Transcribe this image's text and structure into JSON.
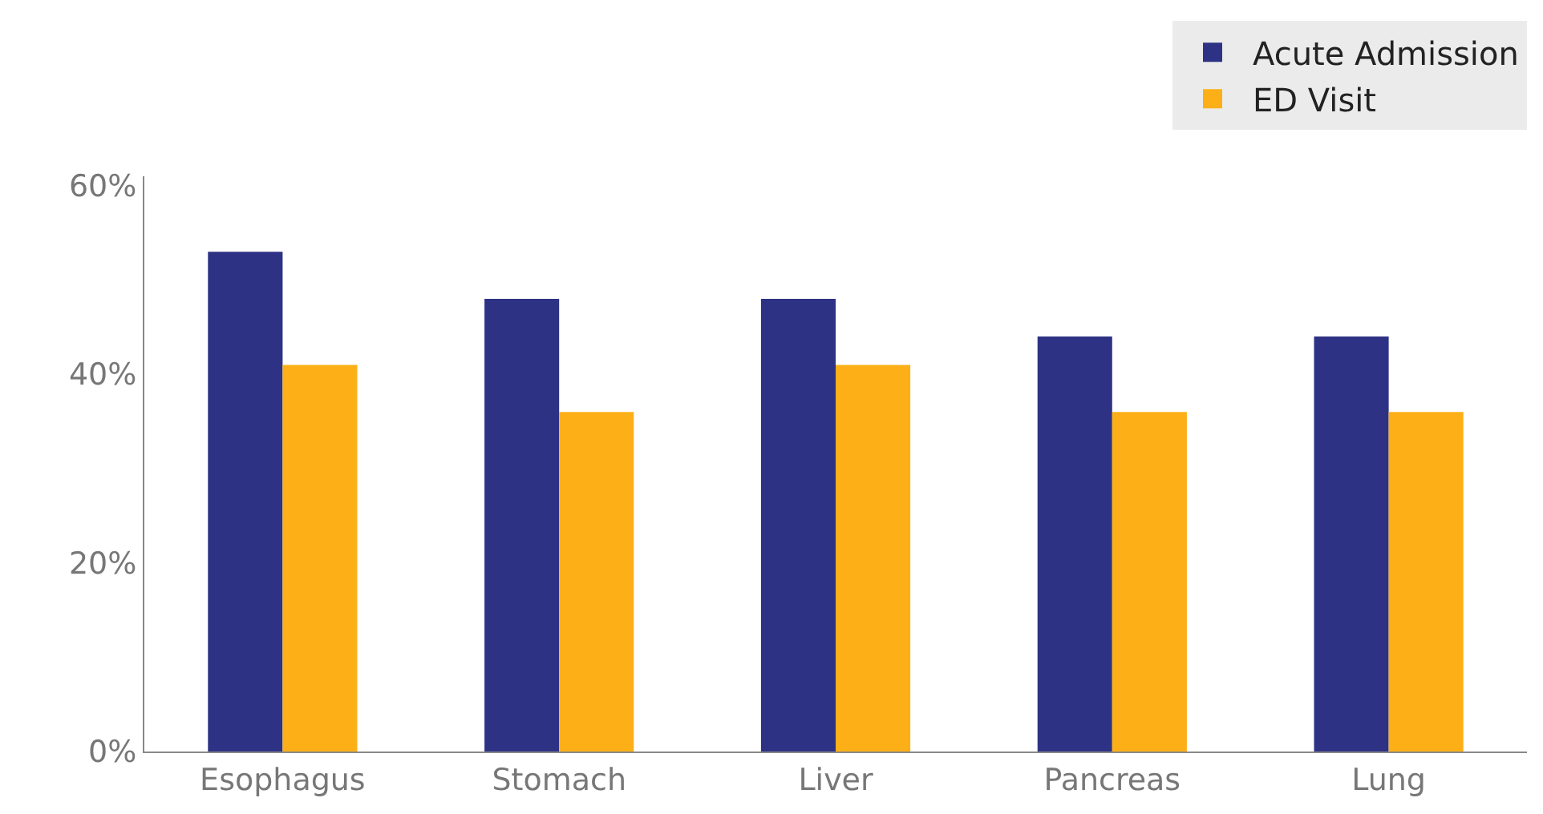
{
  "chart_data": {
    "type": "bar",
    "categories": [
      "Esophagus",
      "Stomach",
      "Liver",
      "Pancreas",
      "Lung"
    ],
    "series": [
      {
        "name": "Acute Admission",
        "color": "#2e3284",
        "values": [
          53,
          48,
          48,
          44,
          44
        ]
      },
      {
        "name": "ED Visit",
        "color": "#fcaf17",
        "values": [
          41,
          36,
          41,
          36,
          36
        ]
      }
    ],
    "ylim": [
      0,
      61
    ],
    "yticks": [
      {
        "value": 0,
        "label": "0%"
      },
      {
        "value": 20,
        "label": "20%"
      },
      {
        "value": 40,
        "label": "40%"
      },
      {
        "value": 60,
        "label": "60%"
      }
    ],
    "legend": "top right"
  }
}
